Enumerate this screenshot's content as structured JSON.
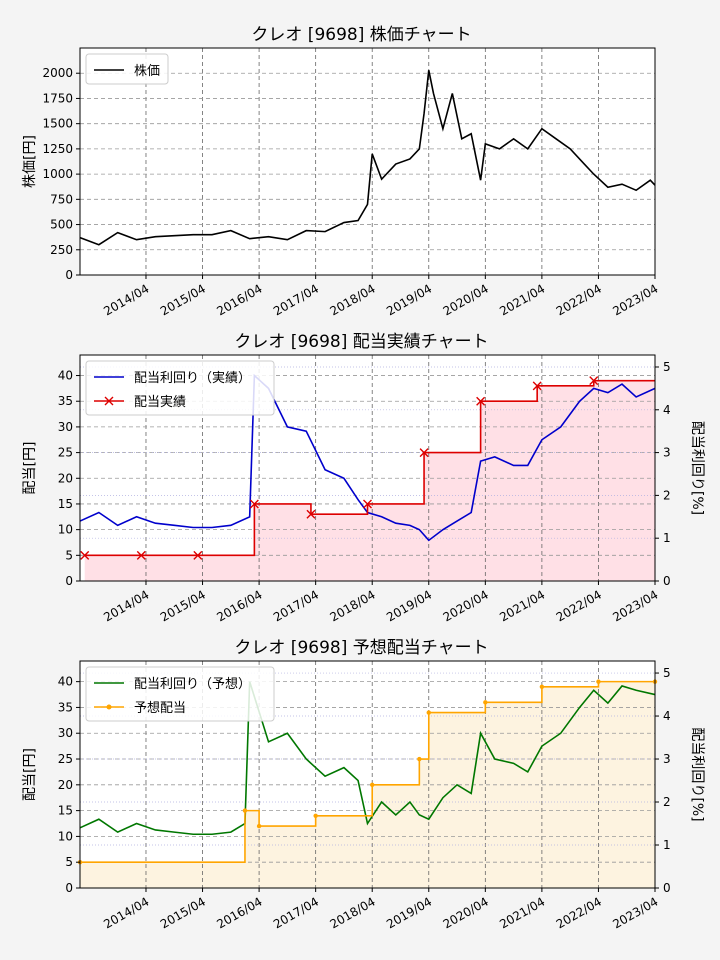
{
  "colors": {
    "background": "#f4f4f4",
    "price": "#000000",
    "actual_yield": "#0000cc",
    "actual_div": "#dd0000",
    "actual_fill": "#ffe0e6",
    "forecast_yield": "#007700",
    "forecast_div": "#ffa500",
    "forecast_fill": "#fdf3e0"
  },
  "chart_data": [
    {
      "type": "line",
      "title": "クレオ [9698]  株価チャート",
      "ylabel": "株価[円]",
      "ylim": [
        0,
        2250
      ],
      "yticks": [
        0,
        250,
        500,
        750,
        1000,
        1250,
        1500,
        1750,
        2000
      ],
      "xlim": [
        "2013-02",
        "2023-04"
      ],
      "xticks": [
        "2014/04",
        "2015/04",
        "2016/04",
        "2017/04",
        "2018/04",
        "2019/04",
        "2020/04",
        "2021/04",
        "2022/04",
        "2023/04"
      ],
      "grid": true,
      "legend_position": "top-left",
      "series": [
        {
          "name": "株価",
          "color": "#000000",
          "x": [
            "2013-02",
            "2013-06",
            "2013-10",
            "2014-02",
            "2014-06",
            "2014-10",
            "2015-02",
            "2015-06",
            "2015-10",
            "2016-02",
            "2016-06",
            "2016-10",
            "2017-02",
            "2017-06",
            "2017-10",
            "2018-01",
            "2018-03",
            "2018-04",
            "2018-06",
            "2018-09",
            "2018-12",
            "2019-02",
            "2019-03",
            "2019-04",
            "2019-05",
            "2019-07",
            "2019-09",
            "2019-11",
            "2020-01",
            "2020-03",
            "2020-04",
            "2020-07",
            "2020-10",
            "2021-01",
            "2021-04",
            "2021-07",
            "2021-10",
            "2022-01",
            "2022-03",
            "2022-06",
            "2022-09",
            "2022-12",
            "2023-03",
            "2023-04"
          ],
          "values": [
            370,
            300,
            420,
            350,
            380,
            390,
            400,
            400,
            440,
            360,
            380,
            350,
            440,
            430,
            520,
            540,
            700,
            1200,
            950,
            1100,
            1150,
            1250,
            1600,
            2030,
            1800,
            1450,
            1800,
            1350,
            1400,
            940,
            1300,
            1250,
            1350,
            1250,
            1450,
            1350,
            1250,
            1100,
            1000,
            870,
            900,
            840,
            940,
            890
          ]
        }
      ]
    },
    {
      "type": "line",
      "title": "クレオ [9698]  配当実績チャート",
      "ylabel": "配当[円]",
      "ylabel_right": "配当利回り[%]",
      "ylim": [
        0,
        44
      ],
      "yticks": [
        0,
        5,
        10,
        15,
        20,
        25,
        30,
        35,
        40
      ],
      "ylim_right": [
        0,
        5.28
      ],
      "yticks_right": [
        0,
        1,
        2,
        3,
        4,
        5
      ],
      "xlim": [
        "2013-02",
        "2023-04"
      ],
      "xticks": [
        "2014/04",
        "2015/04",
        "2016/04",
        "2017/04",
        "2018/04",
        "2019/04",
        "2020/04",
        "2021/04",
        "2022/04",
        "2023/04"
      ],
      "grid": true,
      "legend_position": "top-left",
      "series": [
        {
          "name": "配当利回り（実績）",
          "color": "#0000cc",
          "axis": "right",
          "x": [
            "2013-02",
            "2013-06",
            "2013-10",
            "2014-02",
            "2014-06",
            "2014-10",
            "2015-02",
            "2015-06",
            "2015-10",
            "2016-02",
            "2016-03",
            "2016-06",
            "2016-10",
            "2017-02",
            "2017-06",
            "2017-10",
            "2018-01",
            "2018-03",
            "2018-06",
            "2018-09",
            "2018-12",
            "2019-02",
            "2019-04",
            "2019-07",
            "2019-10",
            "2020-01",
            "2020-03",
            "2020-06",
            "2020-10",
            "2021-01",
            "2021-04",
            "2021-08",
            "2021-12",
            "2022-03",
            "2022-06",
            "2022-09",
            "2022-12",
            "2023-04"
          ],
          "values": [
            1.4,
            1.6,
            1.3,
            1.5,
            1.35,
            1.3,
            1.25,
            1.25,
            1.3,
            1.5,
            4.8,
            4.5,
            3.6,
            3.5,
            2.6,
            2.4,
            1.9,
            1.6,
            1.5,
            1.35,
            1.3,
            1.2,
            0.95,
            1.2,
            1.4,
            1.6,
            2.8,
            2.9,
            2.7,
            2.7,
            3.3,
            3.6,
            4.2,
            4.5,
            4.4,
            4.6,
            4.3,
            4.5
          ]
        },
        {
          "name": "配当実績",
          "color": "#dd0000",
          "axis": "left",
          "step": true,
          "x": [
            "2013-03",
            "2014-03",
            "2015-03",
            "2016-03",
            "2017-03",
            "2018-03",
            "2019-03",
            "2020-03",
            "2021-03",
            "2022-03",
            "2023-04"
          ],
          "values": [
            5,
            5,
            5,
            15,
            13,
            15,
            25,
            35,
            38,
            39,
            39
          ]
        }
      ]
    },
    {
      "type": "line",
      "title": "クレオ [9698]  予想配当チャート",
      "ylabel": "配当[円]",
      "ylabel_right": "配当利回り[%]",
      "ylim": [
        0,
        44
      ],
      "yticks": [
        0,
        5,
        10,
        15,
        20,
        25,
        30,
        35,
        40
      ],
      "ylim_right": [
        0,
        5.28
      ],
      "yticks_right": [
        0,
        1,
        2,
        3,
        4,
        5
      ],
      "xlim": [
        "2013-02",
        "2023-04"
      ],
      "xticks": [
        "2014/04",
        "2015/04",
        "2016/04",
        "2017/04",
        "2018/04",
        "2019/04",
        "2020/04",
        "2021/04",
        "2022/04",
        "2023/04"
      ],
      "grid": true,
      "legend_position": "top-left",
      "series": [
        {
          "name": "配当利回り（予想）",
          "color": "#007700",
          "axis": "right",
          "x": [
            "2013-02",
            "2013-06",
            "2013-10",
            "2014-02",
            "2014-06",
            "2014-10",
            "2015-02",
            "2015-06",
            "2015-10",
            "2016-01",
            "2016-02",
            "2016-06",
            "2016-10",
            "2017-02",
            "2017-06",
            "2017-10",
            "2018-01",
            "2018-03",
            "2018-06",
            "2018-09",
            "2018-12",
            "2019-02",
            "2019-04",
            "2019-07",
            "2019-10",
            "2020-01",
            "2020-03",
            "2020-06",
            "2020-10",
            "2021-01",
            "2021-04",
            "2021-08",
            "2021-12",
            "2022-03",
            "2022-06",
            "2022-09",
            "2022-12",
            "2023-04"
          ],
          "values": [
            1.4,
            1.6,
            1.3,
            1.5,
            1.35,
            1.3,
            1.25,
            1.25,
            1.3,
            1.5,
            4.8,
            3.4,
            3.6,
            3.0,
            2.6,
            2.8,
            2.5,
            1.5,
            2.0,
            1.7,
            2.0,
            1.7,
            1.6,
            2.1,
            2.4,
            2.2,
            3.6,
            3.0,
            2.9,
            2.7,
            3.3,
            3.6,
            4.2,
            4.6,
            4.3,
            4.7,
            4.6,
            4.5
          ]
        },
        {
          "name": "予想配当",
          "color": "#ffa500",
          "axis": "left",
          "step": true,
          "x": [
            "2013-02",
            "2016-01",
            "2016-04",
            "2017-04",
            "2018-04",
            "2019-02",
            "2019-04",
            "2020-04",
            "2021-04",
            "2022-04",
            "2023-04"
          ],
          "values": [
            5,
            15,
            12,
            14,
            20,
            25,
            34,
            36,
            39,
            40,
            40
          ]
        }
      ]
    }
  ]
}
